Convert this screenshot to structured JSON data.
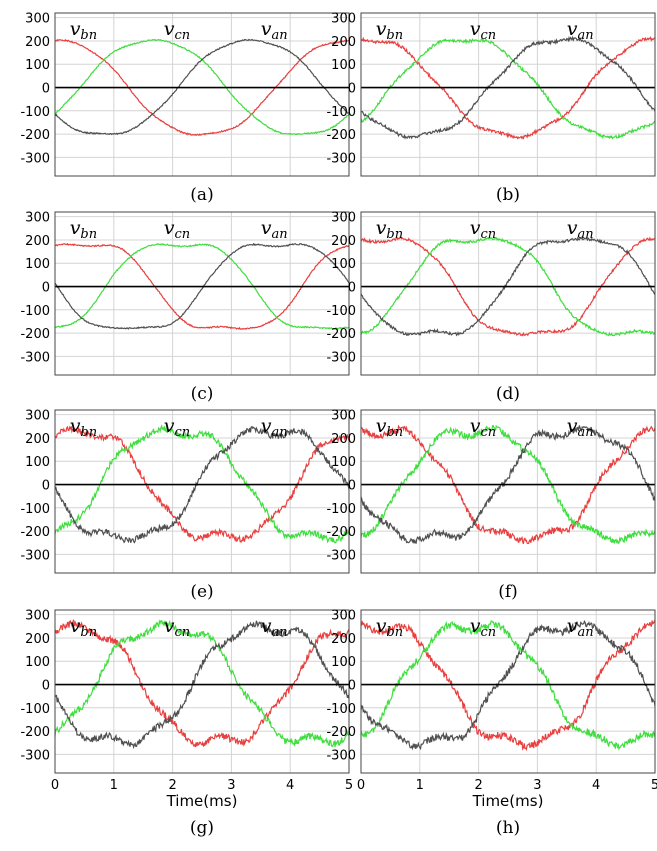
{
  "chart_data": [
    {
      "panel": "a",
      "caption": "(a)",
      "type": "line",
      "ylim": [
        -380,
        320
      ],
      "xlim": [
        0,
        5
      ],
      "grid": true,
      "yticks": [
        300,
        200,
        100,
        0,
        -100,
        -200,
        -300
      ],
      "xticks": [],
      "xlabel": "",
      "labels": [
        {
          "text": "v",
          "sub": "bn"
        },
        {
          "text": "v",
          "sub": "cn"
        },
        {
          "text": "v",
          "sub": "an"
        }
      ],
      "series": [
        {
          "color": "#e83f3f",
          "amp": 205,
          "phase_ms": 0.0,
          "shape": 0.3,
          "ripple": 6
        },
        {
          "color": "#3fdd3f",
          "amp": 205,
          "phase_ms": 1.667,
          "shape": 0.3,
          "ripple": 6
        },
        {
          "color": "#505050",
          "amp": 205,
          "phase_ms": 3.333,
          "shape": 0.3,
          "ripple": 6
        }
      ]
    },
    {
      "panel": "b",
      "caption": "(b)",
      "type": "line",
      "ylim": [
        -380,
        320
      ],
      "xlim": [
        0,
        5
      ],
      "grid": true,
      "yticks": [
        300,
        200,
        100,
        0,
        -100,
        -200,
        -300
      ],
      "xticks": [],
      "xlabel": "",
      "labels": [
        {
          "text": "v",
          "sub": "bn"
        },
        {
          "text": "v",
          "sub": "cn"
        },
        {
          "text": "v",
          "sub": "an"
        }
      ],
      "series": [
        {
          "color": "#e83f3f",
          "amp": 210,
          "phase_ms": 0.1,
          "shape": 0.3,
          "ripple": 14
        },
        {
          "color": "#3fdd3f",
          "amp": 210,
          "phase_ms": 1.767,
          "shape": 0.3,
          "ripple": 14
        },
        {
          "color": "#505050",
          "amp": 210,
          "phase_ms": 3.433,
          "shape": 0.3,
          "ripple": 14
        }
      ]
    },
    {
      "panel": "c",
      "caption": "(c)",
      "type": "line",
      "ylim": [
        -380,
        320
      ],
      "xlim": [
        0,
        5
      ],
      "grid": true,
      "yticks": [
        300,
        200,
        100,
        0,
        -100,
        -200,
        -300
      ],
      "xticks": [],
      "xlabel": "",
      "labels": [
        {
          "text": "v",
          "sub": "bn"
        },
        {
          "text": "v",
          "sub": "cn"
        },
        {
          "text": "v",
          "sub": "an"
        }
      ],
      "series": [
        {
          "color": "#e83f3f",
          "amp": 215,
          "phase_ms": 0.45,
          "shape": 0.85,
          "ripple": 6
        },
        {
          "color": "#3fdd3f",
          "amp": 215,
          "phase_ms": 2.117,
          "shape": 0.85,
          "ripple": 6
        },
        {
          "color": "#505050",
          "amp": 215,
          "phase_ms": 3.783,
          "shape": 0.85,
          "ripple": 6
        }
      ]
    },
    {
      "panel": "d",
      "caption": "(d)",
      "type": "line",
      "ylim": [
        -380,
        320
      ],
      "xlim": [
        0,
        5
      ],
      "grid": true,
      "yticks": [
        300,
        200,
        100,
        0,
        -100,
        -200,
        -300
      ],
      "xticks": [],
      "xlabel": "",
      "labels": [
        {
          "text": "v",
          "sub": "bn"
        },
        {
          "text": "v",
          "sub": "cn"
        },
        {
          "text": "v",
          "sub": "an"
        }
      ],
      "series": [
        {
          "color": "#e83f3f",
          "amp": 238,
          "phase_ms": 0.35,
          "shape": 0.8,
          "ripple": 12
        },
        {
          "color": "#3fdd3f",
          "amp": 238,
          "phase_ms": 2.017,
          "shape": 0.8,
          "ripple": 12
        },
        {
          "color": "#505050",
          "amp": 238,
          "phase_ms": 3.683,
          "shape": 0.8,
          "ripple": 12
        }
      ]
    },
    {
      "panel": "e",
      "caption": "(e)",
      "type": "line",
      "ylim": [
        -380,
        320
      ],
      "xlim": [
        0,
        5
      ],
      "grid": true,
      "yticks": [
        300,
        200,
        100,
        0,
        -100,
        -200,
        -300
      ],
      "xticks": [],
      "xlabel": "",
      "labels": [
        {
          "text": "v",
          "sub": "bn"
        },
        {
          "text": "v",
          "sub": "cn"
        },
        {
          "text": "v",
          "sub": "an"
        }
      ],
      "series": [
        {
          "color": "#e83f3f",
          "amp": 255,
          "phase_ms": 0.35,
          "shape": 0.65,
          "ripple": 28
        },
        {
          "color": "#3fdd3f",
          "amp": 255,
          "phase_ms": 2.017,
          "shape": 0.65,
          "ripple": 28
        },
        {
          "color": "#505050",
          "amp": 255,
          "phase_ms": 3.683,
          "shape": 0.65,
          "ripple": 28
        }
      ]
    },
    {
      "panel": "f",
      "caption": "(f)",
      "type": "line",
      "ylim": [
        -380,
        320
      ],
      "xlim": [
        0,
        5
      ],
      "grid": true,
      "yticks": [
        300,
        200,
        100,
        0,
        -100,
        -200,
        -300
      ],
      "xticks": [],
      "xlabel": "",
      "labels": [
        {
          "text": "v",
          "sub": "bn"
        },
        {
          "text": "v",
          "sub": "cn"
        },
        {
          "text": "v",
          "sub": "an"
        }
      ],
      "series": [
        {
          "color": "#e83f3f",
          "amp": 258,
          "phase_ms": 0.3,
          "shape": 0.65,
          "ripple": 30
        },
        {
          "color": "#3fdd3f",
          "amp": 258,
          "phase_ms": 1.967,
          "shape": 0.65,
          "ripple": 30
        },
        {
          "color": "#505050",
          "amp": 258,
          "phase_ms": 3.633,
          "shape": 0.65,
          "ripple": 30
        }
      ]
    },
    {
      "panel": "g",
      "caption": "(g)",
      "type": "line",
      "ylim": [
        -380,
        320
      ],
      "xlim": [
        0,
        5
      ],
      "grid": true,
      "yticks": [
        300,
        200,
        100,
        0,
        -100,
        -200,
        -300
      ],
      "xticks": [
        0,
        1,
        2,
        3,
        4,
        5
      ],
      "xlabel": "Time(ms)",
      "labels": [
        {
          "text": "v",
          "sub": "bn"
        },
        {
          "text": "v",
          "sub": "cn"
        },
        {
          "text": "v",
          "sub": "an"
        }
      ],
      "series": [
        {
          "color": "#e83f3f",
          "amp": 268,
          "phase_ms": 0.25,
          "shape": 0.55,
          "ripple": 32
        },
        {
          "color": "#3fdd3f",
          "amp": 268,
          "phase_ms": 1.917,
          "shape": 0.55,
          "ripple": 32
        },
        {
          "color": "#505050",
          "amp": 268,
          "phase_ms": 3.583,
          "shape": 0.55,
          "ripple": 32
        }
      ]
    },
    {
      "panel": "h",
      "caption": "(h)",
      "type": "line",
      "ylim": [
        -380,
        320
      ],
      "xlim": [
        0,
        5
      ],
      "grid": true,
      "yticks": [
        300,
        200,
        100,
        0,
        -100,
        -200,
        -300
      ],
      "xticks": [
        0,
        1,
        2,
        3,
        4,
        5
      ],
      "xlabel": "Time(ms)",
      "labels": [
        {
          "text": "v",
          "sub": "bn"
        },
        {
          "text": "v",
          "sub": "cn"
        },
        {
          "text": "v",
          "sub": "an"
        }
      ],
      "series": [
        {
          "color": "#e83f3f",
          "amp": 272,
          "phase_ms": 0.25,
          "shape": 0.55,
          "ripple": 34
        },
        {
          "color": "#3fdd3f",
          "amp": 272,
          "phase_ms": 1.917,
          "shape": 0.55,
          "ripple": 34
        },
        {
          "color": "#505050",
          "amp": 272,
          "phase_ms": 3.583,
          "shape": 0.55,
          "ripple": 34
        }
      ]
    }
  ]
}
